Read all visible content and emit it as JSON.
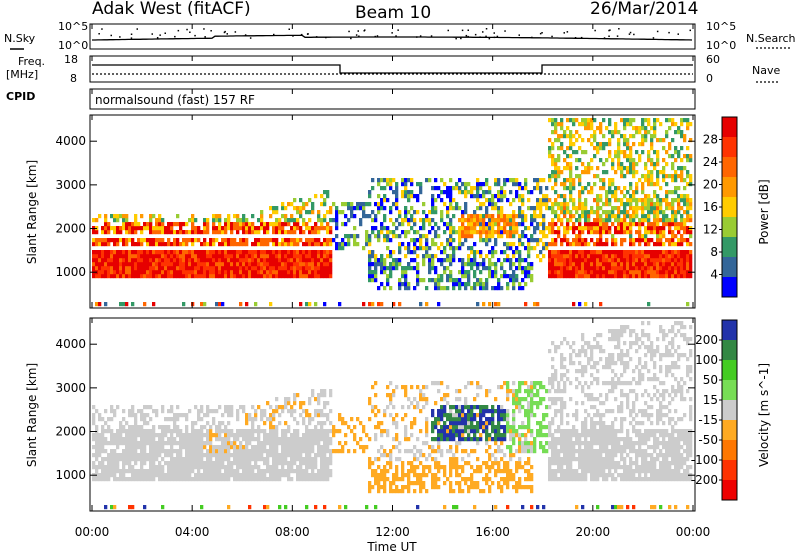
{
  "header": {
    "station": "Adak West (fitACF)",
    "beam": "Beam 10",
    "date": "26/Mar/2014"
  },
  "labels": {
    "nsky": "N.Sky",
    "nsearch": "N.Search",
    "freq": "Freq.",
    "freq_unit": "[MHz]",
    "nave": "Nave",
    "cpid": "CPID",
    "cpid_value": "normalsound (fast) 157 RF"
  },
  "noise_panel": {
    "left_ticks": [
      "10^5",
      "10^0"
    ],
    "right_ticks": [
      "10^5",
      "10^0"
    ]
  },
  "freq_panel": {
    "left_ticks": [
      "18",
      "8"
    ],
    "right_ticks": [
      "60",
      "0"
    ]
  },
  "chart_data": [
    {
      "type": "heatmap",
      "title": "Power",
      "ylabel": "Slant Range [km]",
      "y_ticks": [
        "4000",
        "3000",
        "2000",
        "1000"
      ],
      "ylim": [
        180,
        4600
      ],
      "colorbar_label": "Power [dB]",
      "colorbar_ticks": [
        "28",
        "24",
        "20",
        "16",
        "12",
        "8",
        "4"
      ],
      "colorbar_colors": [
        "#e60000",
        "#ff3300",
        "#ff6600",
        "#ff9900",
        "#ffcc00",
        "#99cc33",
        "#339966",
        "#336699",
        "#0000ff"
      ]
    },
    {
      "type": "heatmap",
      "title": "Velocity",
      "ylabel": "Slant Range [km]",
      "y_ticks": [
        "4000",
        "3000",
        "2000",
        "1000"
      ],
      "ylim": [
        180,
        4600
      ],
      "colorbar_label": "Velocity [m s^-1]",
      "colorbar_ticks": [
        "200",
        "100",
        "50",
        "15",
        "-15",
        "-50",
        "-100",
        "-200"
      ],
      "colorbar_colors": [
        "#2233aa",
        "#338844",
        "#44cc22",
        "#77dd55",
        "#cccccc",
        "#ffaa22",
        "#ff7700",
        "#ff3300",
        "#ee0000"
      ]
    }
  ],
  "x_axis": {
    "title": "Time UT",
    "ticks": [
      "00:00",
      "04:00",
      "08:00",
      "12:00",
      "16:00",
      "20:00",
      "00:00"
    ]
  }
}
